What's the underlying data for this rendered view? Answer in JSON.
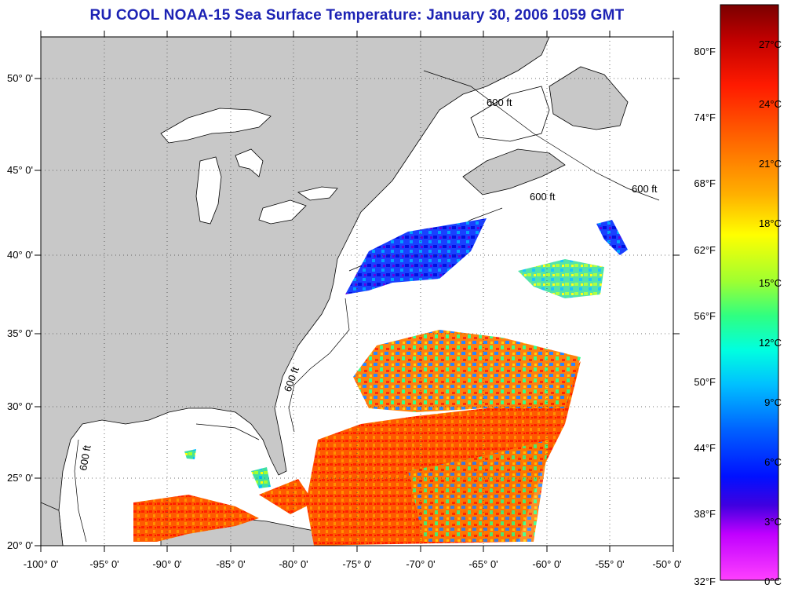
{
  "title": "RU COOL  NOAA-15  Sea Surface Temperature:  January 30, 2006 1059 GMT",
  "map": {
    "lon_range": [
      -100,
      -50
    ],
    "lat_range": [
      20,
      52.5
    ],
    "grid": "dotted",
    "lat_labels": [
      "50° 0'",
      "45° 0'",
      "40° 0'",
      "35° 0'",
      "30° 0'",
      "25° 0'",
      "20° 0'"
    ],
    "lon_labels": [
      "-100° 0'",
      "-95° 0'",
      "-90° 0'",
      "-85° 0'",
      "-80° 0'",
      "-75° 0'",
      "-70° 0'",
      "-65° 0'",
      "-60° 0'",
      "-55° 0'",
      "-50° 0'"
    ],
    "contour_label": "600 ft",
    "land_color": "#c8c8c8",
    "water_color": "#ffffff"
  },
  "colorbar": {
    "fahrenheit_labels": [
      "80°F",
      "74°F",
      "68°F",
      "62°F",
      "56°F",
      "50°F",
      "44°F",
      "38°F",
      "32°F"
    ],
    "celsius_labels": [
      "27°C",
      "24°C",
      "21°C",
      "18°C",
      "15°C",
      "12°C",
      "9°C",
      "6°C",
      "3°C",
      "0°C"
    ],
    "colors": [
      "#7a0000",
      "#d00000",
      "#ff2a00",
      "#ff7a00",
      "#ffc000",
      "#ffff00",
      "#a8ff30",
      "#30ff80",
      "#00ffe0",
      "#00c8ff",
      "#0070ff",
      "#0010ff",
      "#7000e0",
      "#ff00ff",
      "#ff40ff"
    ]
  }
}
